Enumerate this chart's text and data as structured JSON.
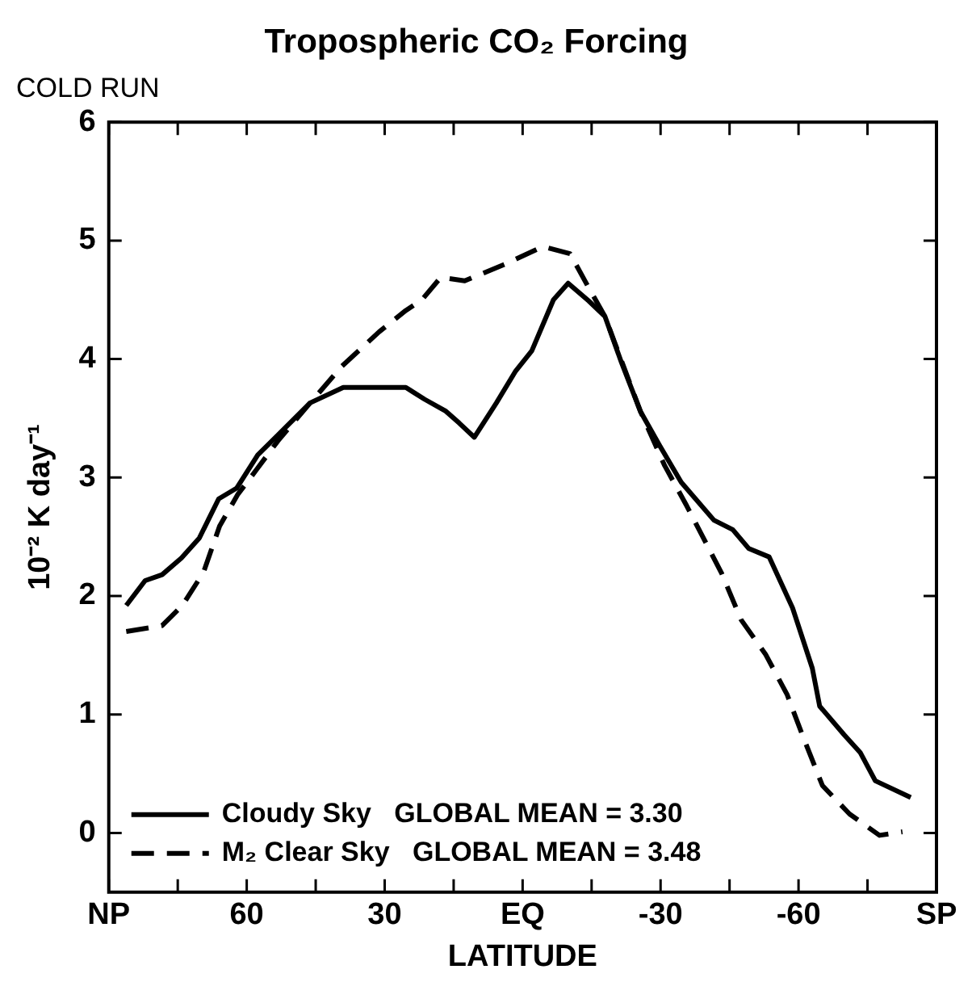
{
  "chart_data": {
    "type": "line",
    "title": "Tropospheric CO₂ Forcing",
    "subtitle": "COLD RUN",
    "xlabel": "LATITUDE",
    "ylabel": "10⁻² K day⁻¹",
    "xlim": [
      90,
      -90
    ],
    "xticks": [
      {
        "value": 90,
        "label": "NP"
      },
      {
        "value": 75,
        "label": null
      },
      60,
      {
        "value": 45,
        "label": null
      },
      30,
      {
        "value": 15,
        "label": null
      },
      {
        "value": 0,
        "label": "EQ"
      },
      {
        "value": -15,
        "label": null
      },
      -30,
      {
        "value": -45,
        "label": null
      },
      -60,
      {
        "value": -75,
        "label": null
      },
      {
        "value": -90,
        "label": "SP"
      }
    ],
    "ylim": [
      -0.5,
      6
    ],
    "yticks": [
      0,
      1,
      2,
      3,
      4,
      5,
      6
    ],
    "grid": false,
    "legend": "bottom left",
    "marker": "none",
    "series": [
      {
        "name": "Cloudy Sky   GLOBAL MEAN = 3.30",
        "color": "#000000",
        "line_style": "solid",
        "x": [
          86.2,
          82.1,
          78.4,
          74.2,
          70.3,
          66.1,
          62.2,
          57.6,
          53.2,
          46.2,
          39.0,
          25.4,
          21.3,
          16.7,
          13.8,
          10.5,
          5.7,
          1.5,
          -2.0,
          -6.7,
          -9.9,
          -14.4,
          -17.9,
          -21.5,
          -25.6,
          -29.8,
          -34.5,
          -41.6,
          -45.7,
          -49.2,
          -53.6,
          -58.7,
          -63.0,
          -64.6,
          -69.9,
          -73.4,
          -76.7,
          -84.4
        ],
        "values": [
          1.92,
          2.13,
          2.18,
          2.32,
          2.49,
          2.82,
          2.91,
          3.19,
          3.36,
          3.63,
          3.76,
          3.76,
          3.66,
          3.56,
          3.46,
          3.34,
          3.63,
          3.9,
          4.07,
          4.5,
          4.64,
          4.49,
          4.36,
          3.97,
          3.56,
          3.27,
          2.96,
          2.64,
          2.56,
          2.4,
          2.33,
          1.9,
          1.39,
          1.07,
          0.83,
          0.68,
          0.44,
          0.3
        ]
      },
      {
        "name": "M₂ Clear Sky   GLOBAL MEAN = 3.48",
        "color": "#000000",
        "line_style": "dashed",
        "x": [
          86.2,
          78.4,
          74.0,
          69.4,
          65.9,
          61.9,
          57.8,
          53.2,
          46.2,
          39.3,
          31.2,
          25.4,
          21.9,
          17.8,
          12.6,
          3.3,
          -4.4,
          -10.3,
          -14.4,
          -17.9,
          -25.6,
          -30.9,
          -35.7,
          -43.3,
          -47.5,
          -52.8,
          -57.5,
          -61.0,
          -65.2,
          -71.1,
          -77.6,
          -82.6
        ],
        "values": [
          1.7,
          1.75,
          1.92,
          2.2,
          2.59,
          2.86,
          3.07,
          3.31,
          3.63,
          3.94,
          4.23,
          4.41,
          4.5,
          4.69,
          4.66,
          4.81,
          4.95,
          4.89,
          4.6,
          4.36,
          3.56,
          3.1,
          2.76,
          2.19,
          1.8,
          1.51,
          1.17,
          0.81,
          0.4,
          0.16,
          -0.02,
          0.01
        ]
      }
    ]
  }
}
